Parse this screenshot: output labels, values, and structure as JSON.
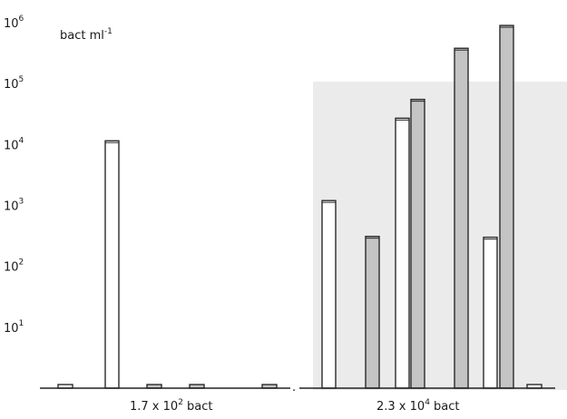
{
  "chart_data": {
    "type": "bar",
    "scale": "log",
    "ylim": [
      1,
      1000000
    ],
    "y_ticks": [
      {
        "base": "10",
        "exp": "1",
        "value": 10
      },
      {
        "base": "10",
        "exp": "2",
        "value": 100
      },
      {
        "base": "10",
        "exp": "3",
        "value": 1000
      },
      {
        "base": "10",
        "exp": "4",
        "value": 10000
      },
      {
        "base": "10",
        "exp": "5",
        "value": 100000
      },
      {
        "base": "10",
        "exp": "6",
        "value": 1000000
      }
    ],
    "unit_label": {
      "text": "bact  ml",
      "exp": "-1"
    },
    "group_labels": [
      {
        "base": "1.7 x 10",
        "exp": "2",
        "suffix": " bact"
      },
      {
        "base": "2.3 x 10",
        "exp": "4",
        "suffix": " bact"
      }
    ],
    "series": [
      {
        "style": "open"
      },
      {
        "style": "shaded"
      }
    ],
    "bars": [
      {
        "group": 0,
        "series": 0,
        "value": 1
      },
      {
        "group": 0,
        "series": 0,
        "value": 11500
      },
      {
        "group": 0,
        "series": 1,
        "value": 1
      },
      {
        "group": 0,
        "series": 1,
        "value": 1
      },
      {
        "group": 0,
        "series": 1,
        "value": 1
      },
      {
        "group": 1,
        "series": 0,
        "value": 1200
      },
      {
        "group": 1,
        "series": 1,
        "value": 310
      },
      {
        "group": 1,
        "series": 0,
        "value": 27000
      },
      {
        "group": 1,
        "series": 1,
        "value": 55000
      },
      {
        "group": 1,
        "series": 1,
        "value": 380000
      },
      {
        "group": 1,
        "series": 0,
        "value": 300
      },
      {
        "group": 1,
        "series": 1,
        "value": 900000
      },
      {
        "group": 1,
        "series": 0,
        "value": 1
      }
    ]
  }
}
